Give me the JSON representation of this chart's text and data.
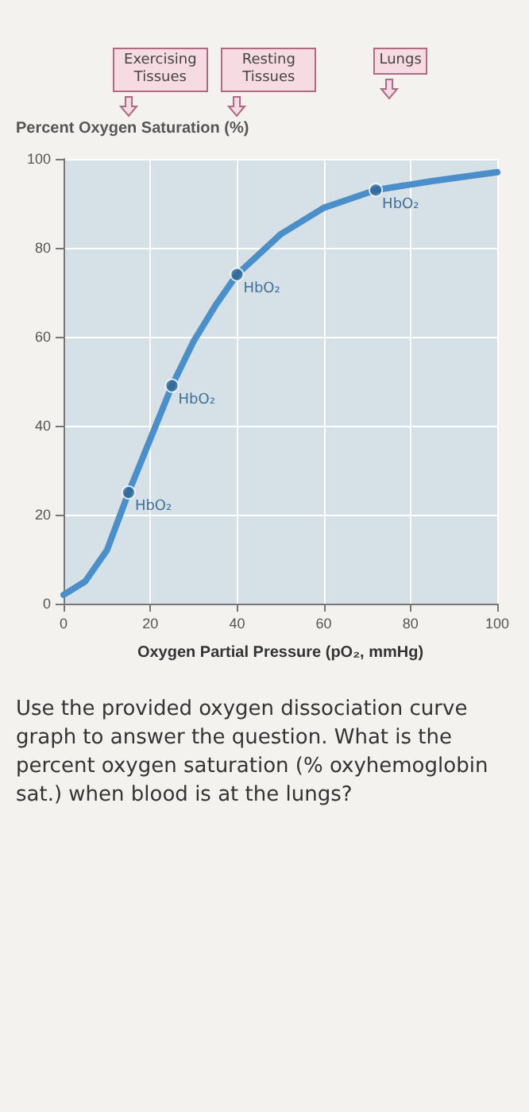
{
  "chart_data": {
    "type": "line",
    "xlabel": "Oxygen Partial Pressure (pO₂, mmHg)",
    "ylabel": "Percent Oxygen Saturation (%)",
    "xlim": [
      0,
      100
    ],
    "xticks": [
      0,
      20,
      40,
      60,
      80,
      100
    ],
    "ylim": [
      0,
      100
    ],
    "yticks": [
      0,
      20,
      40,
      60,
      80,
      100
    ],
    "grid": true,
    "line_style": "solid",
    "series": [
      {
        "color": "#4a8fc9",
        "marker": "none",
        "x": [
          0,
          5,
          10,
          15,
          20,
          25,
          30,
          35,
          40,
          50,
          60,
          72,
          85,
          100
        ],
        "values": [
          2,
          5,
          12,
          25,
          37,
          49,
          59,
          67,
          74,
          83,
          89,
          93,
          95,
          97
        ]
      },
      {
        "type": "scatter",
        "color": "#2c6496",
        "marker": "circle",
        "x": [
          15,
          25,
          40,
          72
        ],
        "values": [
          25,
          49,
          74,
          93
        ]
      }
    ],
    "annotations": [
      {
        "text": "HbO₂",
        "x": 15,
        "y": 25
      },
      {
        "text": "HbO₂",
        "x": 25,
        "y": 49
      },
      {
        "text": "HbO₂",
        "x": 40,
        "y": 74
      },
      {
        "text": "HbO₂",
        "x": 72,
        "y": 93
      },
      "Exercising Tissues",
      "Resting Tissues",
      "Lungs",
      "Use the provided oxygen dissociation curve graph to answer the question. What is the percent oxygen saturation (% oxyhemoglobin sat.) when blood is at the lungs?"
    ]
  }
}
